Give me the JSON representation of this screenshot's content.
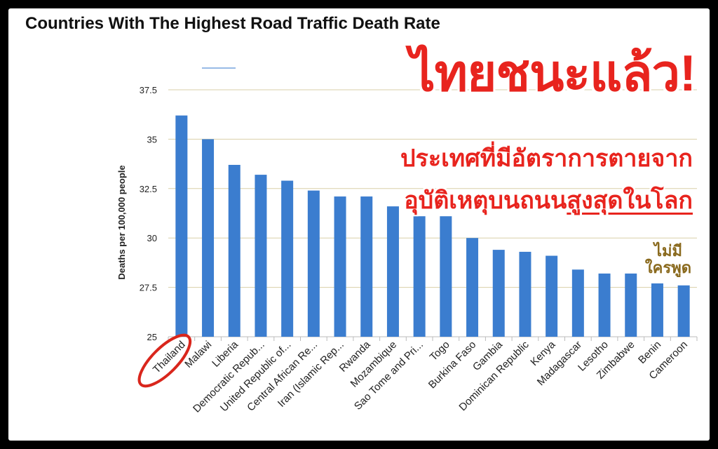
{
  "chart_data": {
    "type": "bar",
    "title": "Countries With The Highest Road Traffic Death Rate",
    "ylabel": "Deaths per 100,000 people",
    "xlabel": "",
    "ylim": [
      25,
      38.5
    ],
    "yticks": [
      "25",
      "27.5",
      "30",
      "32.5",
      "35",
      "37.5"
    ],
    "grid": true,
    "categories": [
      "Thailand",
      "Malawi",
      "Liberia",
      "Democratic Repub...",
      "United Republic of...",
      "Central African Re...",
      "Iran (Islamic Rep...",
      "Rwanda",
      "Mozambique",
      "Sao Tome and Pri...",
      "Togo",
      "Burkina Faso",
      "Gambia",
      "Dominican Republic",
      "Kenya",
      "Madagascar",
      "Lesotho",
      "Zimbabwe",
      "Benin",
      "Cameroon"
    ],
    "values": [
      36.2,
      35.0,
      33.7,
      33.2,
      32.9,
      32.4,
      32.1,
      32.1,
      31.6,
      31.1,
      31.1,
      30.0,
      29.4,
      29.3,
      29.1,
      28.4,
      28.2,
      28.2,
      27.7,
      27.6
    ],
    "bar_color": "#3b7dcf",
    "highlight": "Thailand",
    "highlight_color": "#d9261c"
  },
  "overlay": {
    "headline": "ไทยชนะแล้ว!",
    "line1": "ประเทศที่มีอัตราการตายจาก",
    "line2_a": "อุบัติเหตุบนถนน",
    "line2_b": "สูงสุดในโลก",
    "stamp_a": "ไม่มี",
    "stamp_b": "ใครพูด"
  }
}
